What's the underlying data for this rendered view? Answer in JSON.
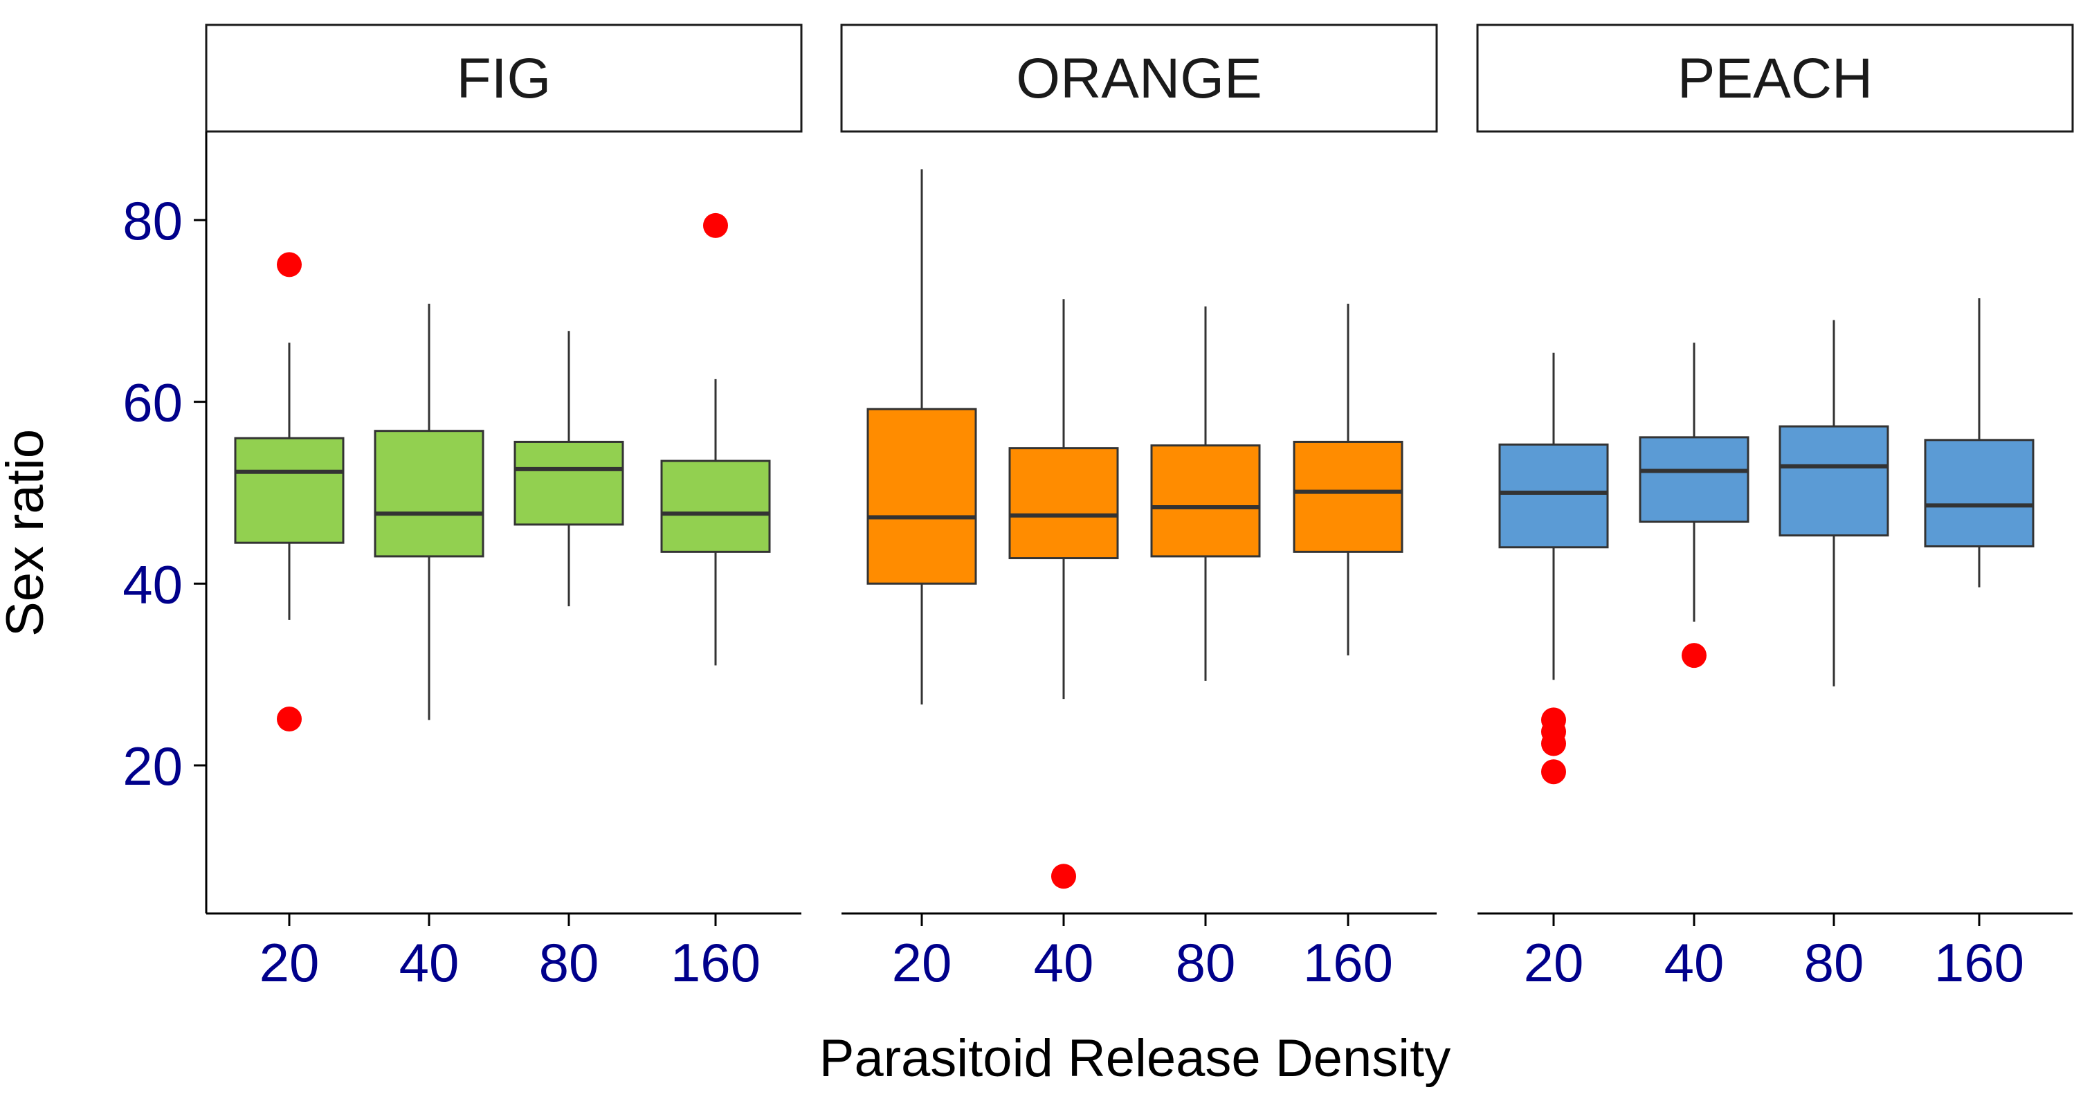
{
  "chart_data": {
    "type": "boxplot",
    "facets": [
      {
        "name": "FIG",
        "color": "#92d050",
        "boxes": [
          {
            "category": "20",
            "whisker_low": 36,
            "q1": 44.5,
            "median": 52.3,
            "q3": 56.0,
            "whisker_high": 66.5,
            "outliers": [
              75.1,
              25.1
            ]
          },
          {
            "category": "40",
            "whisker_low": 25.0,
            "q1": 43.0,
            "median": 47.7,
            "q3": 56.8,
            "whisker_high": 70.8,
            "outliers": []
          },
          {
            "category": "80",
            "whisker_low": 37.5,
            "q1": 46.5,
            "median": 52.6,
            "q3": 55.6,
            "whisker_high": 67.8,
            "outliers": []
          },
          {
            "category": "160",
            "whisker_low": 31.0,
            "q1": 43.5,
            "median": 47.7,
            "q3": 53.5,
            "whisker_high": 62.5,
            "outliers": [
              79.4
            ]
          }
        ]
      },
      {
        "name": "ORANGE",
        "color": "#ff8c00",
        "boxes": [
          {
            "category": "20",
            "whisker_low": 26.7,
            "q1": 40.0,
            "median": 47.3,
            "q3": 59.2,
            "whisker_high": 85.6,
            "outliers": []
          },
          {
            "category": "40",
            "whisker_low": 27.3,
            "q1": 42.8,
            "median": 47.5,
            "q3": 54.9,
            "whisker_high": 71.3,
            "outliers": [
              7.8
            ]
          },
          {
            "category": "80",
            "whisker_low": 29.3,
            "q1": 43.0,
            "median": 48.4,
            "q3": 55.2,
            "whisker_high": 70.5,
            "outliers": []
          },
          {
            "category": "160",
            "whisker_low": 32.1,
            "q1": 43.5,
            "median": 50.1,
            "q3": 55.6,
            "whisker_high": 70.8,
            "outliers": []
          }
        ]
      },
      {
        "name": "PEACH",
        "color": "#5b9bd5",
        "boxes": [
          {
            "category": "20",
            "whisker_low": 29.4,
            "q1": 44.0,
            "median": 50.0,
            "q3": 55.3,
            "whisker_high": 65.4,
            "outliers": [
              25.0,
              23.7,
              22.4,
              19.3
            ]
          },
          {
            "category": "40",
            "whisker_low": 35.8,
            "q1": 46.8,
            "median": 52.4,
            "q3": 56.1,
            "whisker_high": 66.5,
            "outliers": [
              32.1
            ]
          },
          {
            "category": "80",
            "whisker_low": 28.7,
            "q1": 45.3,
            "median": 52.9,
            "q3": 57.3,
            "whisker_high": 69.0,
            "outliers": []
          },
          {
            "category": "160",
            "whisker_low": 39.6,
            "q1": 44.1,
            "median": 48.6,
            "q3": 55.8,
            "whisker_high": 71.4,
            "outliers": []
          }
        ]
      }
    ],
    "categories": [
      "20",
      "40",
      "80",
      "160"
    ],
    "xlabel": "Parasitoid Release Density",
    "ylabel": "Sex ratio",
    "yticks": [
      20,
      40,
      60,
      80
    ],
    "ylim": [
      5,
      89.5
    ],
    "outlier_color": "#ff0000",
    "tick_label_color": "#00008b"
  }
}
